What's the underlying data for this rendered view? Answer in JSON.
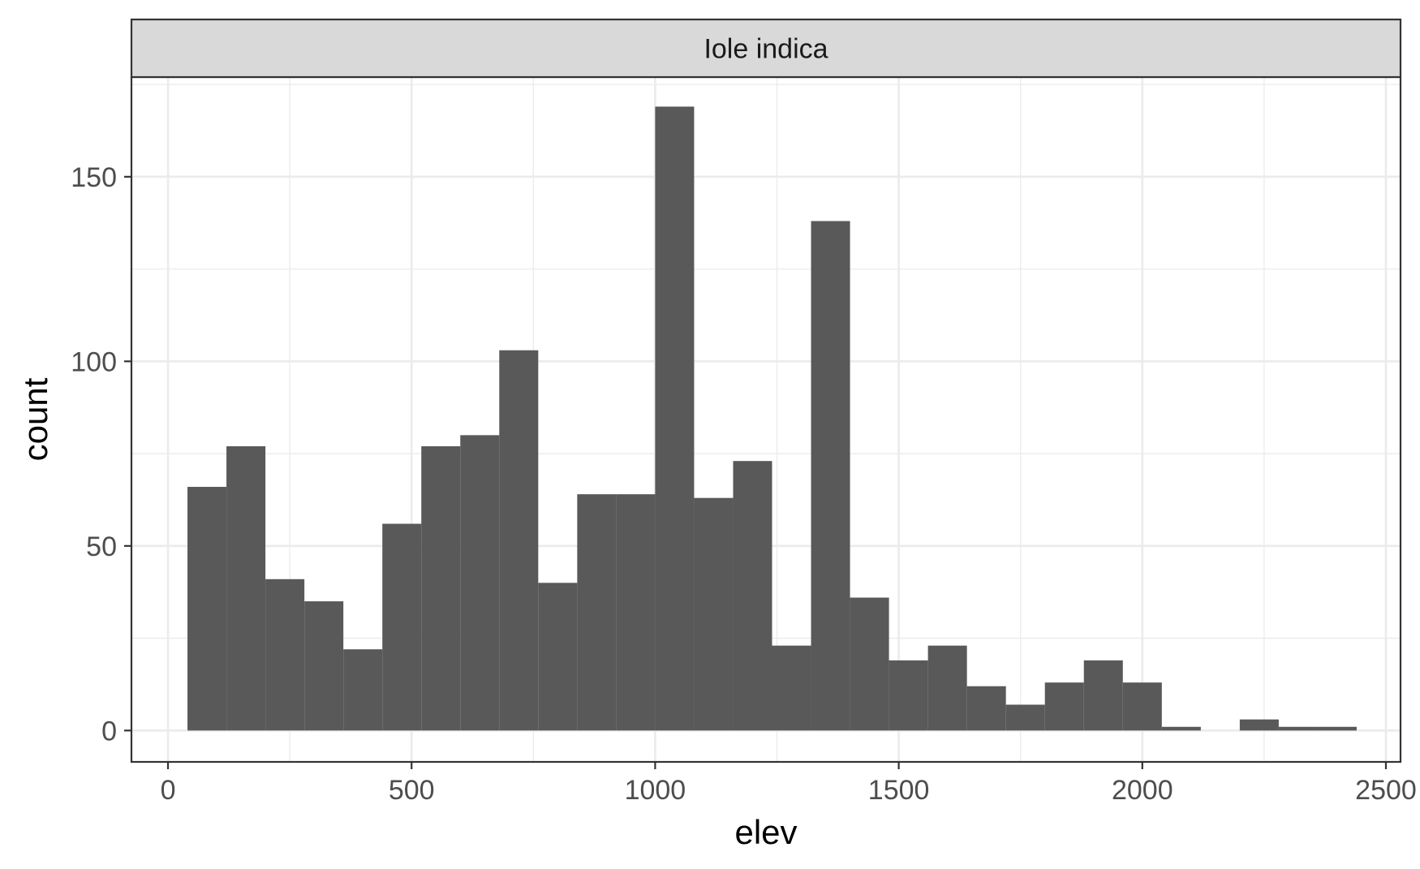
{
  "chart_data": {
    "type": "bar",
    "facet_label": "Iole indica",
    "xlabel": "elev",
    "ylabel": "count",
    "xlim": [
      -75,
      2530
    ],
    "ylim": [
      -8.5,
      177
    ],
    "x_ticks": [
      0,
      500,
      1000,
      1500,
      2000,
      2500
    ],
    "x_tick_labels": [
      "0",
      "500",
      "1000",
      "1500",
      "2000",
      "2500"
    ],
    "y_ticks": [
      0,
      50,
      100,
      150
    ],
    "y_tick_labels": [
      "0",
      "50",
      "100",
      "150"
    ],
    "grid": true,
    "bar_color": "#595959",
    "bins": [
      {
        "x_start": 40,
        "x_end": 120,
        "count": 66
      },
      {
        "x_start": 120,
        "x_end": 200,
        "count": 77
      },
      {
        "x_start": 200,
        "x_end": 280,
        "count": 41
      },
      {
        "x_start": 280,
        "x_end": 360,
        "count": 35
      },
      {
        "x_start": 360,
        "x_end": 440,
        "count": 22
      },
      {
        "x_start": 440,
        "x_end": 520,
        "count": 56
      },
      {
        "x_start": 520,
        "x_end": 600,
        "count": 77
      },
      {
        "x_start": 600,
        "x_end": 680,
        "count": 80
      },
      {
        "x_start": 680,
        "x_end": 760,
        "count": 103
      },
      {
        "x_start": 760,
        "x_end": 840,
        "count": 40
      },
      {
        "x_start": 840,
        "x_end": 920,
        "count": 64
      },
      {
        "x_start": 920,
        "x_end": 1000,
        "count": 64
      },
      {
        "x_start": 1000,
        "x_end": 1080,
        "count": 169
      },
      {
        "x_start": 1080,
        "x_end": 1160,
        "count": 63
      },
      {
        "x_start": 1160,
        "x_end": 1240,
        "count": 73
      },
      {
        "x_start": 1240,
        "x_end": 1320,
        "count": 23
      },
      {
        "x_start": 1320,
        "x_end": 1400,
        "count": 138
      },
      {
        "x_start": 1400,
        "x_end": 1480,
        "count": 36
      },
      {
        "x_start": 1480,
        "x_end": 1560,
        "count": 19
      },
      {
        "x_start": 1560,
        "x_end": 1640,
        "count": 23
      },
      {
        "x_start": 1640,
        "x_end": 1720,
        "count": 12
      },
      {
        "x_start": 1720,
        "x_end": 1800,
        "count": 7
      },
      {
        "x_start": 1800,
        "x_end": 1880,
        "count": 13
      },
      {
        "x_start": 1880,
        "x_end": 1960,
        "count": 19
      },
      {
        "x_start": 1960,
        "x_end": 2040,
        "count": 13
      },
      {
        "x_start": 2040,
        "x_end": 2120,
        "count": 1
      },
      {
        "x_start": 2120,
        "x_end": 2200,
        "count": 0
      },
      {
        "x_start": 2200,
        "x_end": 2280,
        "count": 3
      },
      {
        "x_start": 2280,
        "x_end": 2360,
        "count": 1
      },
      {
        "x_start": 2360,
        "x_end": 2440,
        "count": 1
      }
    ]
  }
}
